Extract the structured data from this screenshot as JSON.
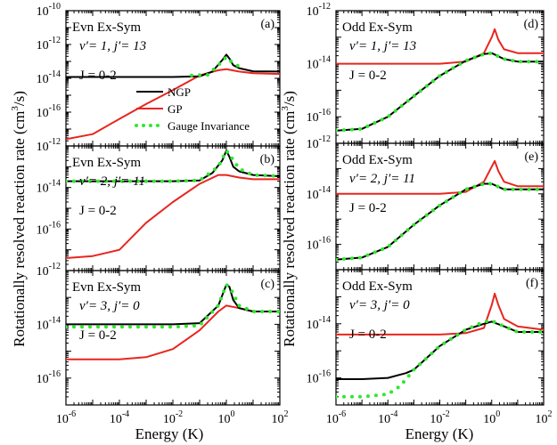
{
  "figure": {
    "ylabel": "Rotationally resolved reaction rate (cm",
    "ylabel_sup": "3",
    "ylabel_end": "/s)",
    "legend": [
      "NGP",
      "GP",
      "Gauge Invariance"
    ],
    "colors": {
      "NGP": "#000000",
      "GP": "#e8251f",
      "Gauge Invariance": "#2ee82e"
    }
  },
  "chart_data": [
    {
      "type": "line",
      "panel": "a",
      "letter": "(a)",
      "title": "Evn Ex-Sym",
      "state_v": "v′= 1, ",
      "state_j": "j′= 13",
      "jrange": "J = 0-2",
      "xlabel": "Energy (K)",
      "xscale": "log",
      "xlim": [
        1e-06,
        100
      ],
      "yscale": "log",
      "ylim": [
        1e-18,
        1e-10
      ],
      "yticks_shown": [
        -16,
        -14,
        -12,
        -10
      ],
      "series": [
        {
          "name": "NGP",
          "x": [
            1e-06,
            0.0001,
            0.01,
            0.1,
            0.3,
            0.7,
            1.0,
            1.3,
            1.8,
            3,
            10,
            100
          ],
          "y": [
            1.2e-14,
            1.2e-14,
            1.2e-14,
            1.3e-14,
            2.5e-14,
            1.2e-13,
            2.5e-13,
            1.5e-13,
            6e-14,
            4e-14,
            2.6e-14,
            2.5e-14
          ]
        },
        {
          "name": "GP",
          "x": [
            1e-06,
            1e-05,
            0.0001,
            0.001,
            0.01,
            0.1,
            0.5,
            1,
            3,
            10,
            100
          ],
          "y": [
            2.5e-18,
            5e-18,
            4e-17,
            3e-16,
            2e-15,
            1.5e-14,
            3e-14,
            3.5e-14,
            2.5e-14,
            2e-14,
            1.8e-14
          ]
        },
        {
          "name": "Gauge Invariance",
          "x": [
            0.05,
            0.2,
            0.5,
            1.0,
            1.5,
            3
          ],
          "y": [
            1.5e-14,
            1.6e-14,
            6e-14,
            1.8e-13,
            1e-13,
            5e-14
          ]
        }
      ]
    },
    {
      "type": "line",
      "panel": "b",
      "letter": "(b)",
      "title": "Evn Ex-Sym",
      "state_v": "v′= 2, ",
      "state_j": "j′= 11",
      "jrange": "J = 0-2",
      "xlabel": "Energy (K)",
      "xscale": "log",
      "xlim": [
        1e-06,
        100
      ],
      "yscale": "log",
      "ylim": [
        1e-18,
        1e-12
      ],
      "yticks_shown": [
        -16,
        -14,
        -12
      ],
      "series": [
        {
          "name": "NGP",
          "x": [
            1e-06,
            0.0001,
            0.01,
            0.1,
            0.3,
            0.7,
            1.0,
            1.3,
            1.8,
            3,
            10,
            100
          ],
          "y": [
            2e-14,
            2e-14,
            2e-14,
            2.2e-14,
            5e-14,
            2e-13,
            6e-13,
            3e-13,
            1e-13,
            6e-14,
            4e-14,
            3.5e-14
          ]
        },
        {
          "name": "GP",
          "x": [
            1e-06,
            1e-05,
            0.0001,
            0.001,
            0.01,
            0.1,
            0.5,
            1,
            3,
            10,
            100
          ],
          "y": [
            4e-18,
            5e-18,
            1e-17,
            2e-16,
            2e-15,
            1.5e-14,
            4e-14,
            4e-14,
            3e-14,
            2.5e-14,
            2.5e-14
          ]
        },
        {
          "name": "Gauge Invariance",
          "x": [
            1e-06,
            0.0001,
            0.01,
            0.1,
            0.5,
            1.0,
            1.5,
            3,
            10,
            100
          ],
          "y": [
            2e-14,
            2e-14,
            2e-14,
            2.2e-14,
            1e-13,
            6e-13,
            3e-13,
            8e-14,
            4e-14,
            3.5e-14
          ]
        }
      ]
    },
    {
      "type": "line",
      "panel": "c",
      "letter": "(c)",
      "title": "Evn Ex-Sym",
      "state_v": "v′= 3, ",
      "state_j": "j′= 0",
      "jrange": "J = 0-2",
      "xlabel": "Energy (K)",
      "xscale": "log",
      "xlim": [
        1e-06,
        100
      ],
      "yscale": "log",
      "ylim": [
        1e-17,
        1e-12
      ],
      "yticks_shown": [
        -16,
        -14,
        -12
      ],
      "series": [
        {
          "name": "NGP",
          "x": [
            1e-06,
            0.0001,
            0.01,
            0.1,
            0.5,
            1.0,
            1.3,
            1.8,
            3,
            10,
            100
          ],
          "y": [
            1e-14,
            1e-14,
            1e-14,
            1.1e-14,
            5e-14,
            3e-13,
            2.5e-13,
            8e-14,
            4e-14,
            3e-14,
            3e-14
          ]
        },
        {
          "name": "GP",
          "x": [
            1e-06,
            1e-05,
            0.0001,
            0.001,
            0.01,
            0.1,
            0.5,
            1,
            3,
            10,
            100
          ],
          "y": [
            5e-16,
            5e-16,
            5e-16,
            6e-16,
            1.2e-15,
            6e-15,
            3e-14,
            5e-14,
            4e-14,
            3e-14,
            3e-14
          ]
        },
        {
          "name": "Gauge Invariance",
          "x": [
            1e-06,
            0.0001,
            0.01,
            0.1,
            0.5,
            1.0,
            1.5,
            3,
            10,
            100
          ],
          "y": [
            8e-15,
            8e-15,
            8e-15,
            9e-15,
            5e-14,
            3e-13,
            2e-13,
            5e-14,
            3e-14,
            3e-14
          ]
        }
      ]
    },
    {
      "type": "line",
      "panel": "d",
      "letter": "(d)",
      "title": "Odd Ex-Sym",
      "state_v": "v′= 1, ",
      "state_j": "j′= 13",
      "jrange": "J = 0-2",
      "xlabel": "Energy (K)",
      "xscale": "log",
      "xlim": [
        1e-06,
        100
      ],
      "yscale": "log",
      "ylim": [
        1e-17,
        1e-12
      ],
      "yticks_shown": [
        -16,
        -14,
        -12
      ],
      "series": [
        {
          "name": "NGP",
          "x": [
            1e-06,
            1e-05,
            0.0001,
            0.001,
            0.01,
            0.1,
            0.5,
            1,
            3,
            10,
            100
          ],
          "y": [
            3e-17,
            3.5e-17,
            1e-16,
            6e-16,
            3.5e-15,
            1.3e-14,
            2.3e-14,
            2.5e-14,
            1.5e-14,
            1.2e-14,
            1.2e-14
          ]
        },
        {
          "name": "GP",
          "x": [
            1e-06,
            0.0001,
            0.01,
            0.1,
            0.5,
            1.0,
            1.3,
            1.8,
            3,
            10,
            100
          ],
          "y": [
            1e-14,
            1e-14,
            1e-14,
            1.2e-14,
            2.5e-14,
            1e-13,
            2e-13,
            8e-14,
            3.5e-14,
            2.5e-14,
            2.5e-14
          ]
        },
        {
          "name": "Gauge Invariance",
          "x": [
            1e-06,
            1e-05,
            0.0001,
            0.001,
            0.01,
            0.1,
            0.5,
            1,
            3,
            10,
            100
          ],
          "y": [
            3e-17,
            3.5e-17,
            1e-16,
            6e-16,
            3.5e-15,
            1.3e-14,
            2.3e-14,
            2.5e-14,
            1.5e-14,
            1.2e-14,
            1.2e-14
          ]
        }
      ]
    },
    {
      "type": "line",
      "panel": "e",
      "letter": "(e)",
      "title": "Odd Ex-Sym",
      "state_v": "v′= 2, ",
      "state_j": "j′= 11",
      "jrange": "J = 0-2",
      "xlabel": "Energy (K)",
      "xscale": "log",
      "xlim": [
        1e-06,
        100
      ],
      "yscale": "log",
      "ylim": [
        1e-17,
        1e-12
      ],
      "yticks_shown": [
        -16,
        -14,
        -12
      ],
      "series": [
        {
          "name": "NGP",
          "x": [
            1e-06,
            1e-05,
            0.0001,
            0.001,
            0.01,
            0.1,
            0.5,
            1,
            3,
            10,
            100
          ],
          "y": [
            2.5e-17,
            3e-17,
            8e-17,
            6e-16,
            3.5e-15,
            1.5e-14,
            2.5e-14,
            2.5e-14,
            1.5e-14,
            1.5e-14,
            1.5e-14
          ]
        },
        {
          "name": "GP",
          "x": [
            1e-06,
            0.0001,
            0.01,
            0.1,
            0.5,
            1.0,
            1.3,
            1.8,
            3,
            10,
            100
          ],
          "y": [
            1e-14,
            1e-14,
            1e-14,
            1.2e-14,
            3e-14,
            1.2e-13,
            2e-13,
            8e-14,
            3e-14,
            2e-14,
            2e-14
          ]
        },
        {
          "name": "Gauge Invariance",
          "x": [
            1e-06,
            1e-05,
            0.0001,
            0.001,
            0.01,
            0.1,
            0.5,
            1,
            3,
            10,
            100
          ],
          "y": [
            2.5e-17,
            3e-17,
            8e-17,
            6e-16,
            3.5e-15,
            1.5e-14,
            2.5e-14,
            2.5e-14,
            1.5e-14,
            1.5e-14,
            1.5e-14
          ]
        }
      ]
    },
    {
      "type": "line",
      "panel": "f",
      "letter": "(f)",
      "title": "Odd Ex-Sym",
      "state_v": "v′= 3, ",
      "state_j": "j′= 0",
      "jrange": "J = 0-2",
      "xlabel": "Energy (K)",
      "xscale": "log",
      "xlim": [
        1e-06,
        100
      ],
      "yscale": "log",
      "ylim": [
        1e-17,
        1e-12
      ],
      "yticks_shown": [
        -16,
        -14
      ],
      "series": [
        {
          "name": "NGP",
          "x": [
            1e-06,
            1e-05,
            0.0001,
            0.0005,
            0.001,
            0.01,
            0.1,
            0.5,
            1,
            3,
            10,
            100
          ],
          "y": [
            9e-17,
            9e-17,
            1e-16,
            1.5e-16,
            2e-16,
            1.5e-15,
            6e-15,
            1e-14,
            1.2e-14,
            8e-15,
            5e-15,
            5e-15
          ]
        },
        {
          "name": "GP",
          "x": [
            1e-06,
            0.0001,
            0.01,
            0.1,
            0.5,
            1.0,
            1.3,
            1.8,
            3,
            10,
            100
          ],
          "y": [
            4e-15,
            4e-15,
            4e-15,
            4.5e-15,
            7e-15,
            5e-14,
            1.3e-13,
            5e-14,
            1.5e-14,
            8e-15,
            6e-15
          ]
        },
        {
          "name": "Gauge Invariance",
          "x": [
            1e-06,
            1e-05,
            0.0001,
            0.0003,
            0.001,
            0.01,
            0.1,
            0.5,
            1,
            3,
            10,
            100
          ],
          "y": [
            2e-17,
            2e-17,
            2.5e-17,
            5e-17,
            2e-16,
            1.5e-15,
            6e-15,
            1.2e-14,
            1.3e-14,
            8e-15,
            5e-15,
            5e-15
          ]
        }
      ]
    }
  ]
}
